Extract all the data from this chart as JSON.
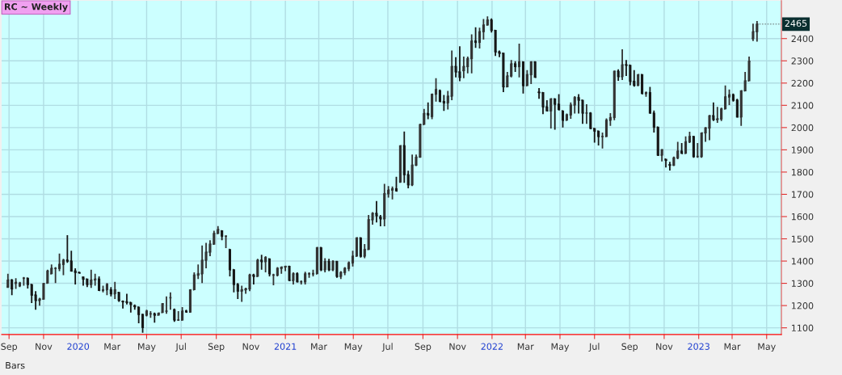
{
  "chart_data": {
    "type": "candlestick",
    "title": "RC ~ Weekly",
    "x": [
      "2019-08-30",
      "2019-09-06",
      "2019-09-13",
      "2019-09-20",
      "2019-09-27",
      "2019-10-04",
      "2019-10-11",
      "2019-10-18",
      "2019-10-25",
      "2019-11-01",
      "2019-11-08",
      "2019-11-15",
      "2019-11-22",
      "2019-11-29",
      "2019-12-06",
      "2019-12-13",
      "2019-12-20",
      "2019-12-27",
      "2020-01-03",
      "2020-01-10",
      "2020-01-17",
      "2020-01-24",
      "2020-01-31",
      "2020-02-07",
      "2020-02-14",
      "2020-02-21",
      "2020-02-28",
      "2020-03-06",
      "2020-03-13",
      "2020-03-20",
      "2020-03-27",
      "2020-04-03",
      "2020-04-10",
      "2020-04-17",
      "2020-04-24",
      "2020-05-01",
      "2020-05-08",
      "2020-05-15",
      "2020-05-22",
      "2020-05-29",
      "2020-06-05",
      "2020-06-12",
      "2020-06-19",
      "2020-06-26",
      "2020-07-03",
      "2020-07-10",
      "2020-07-17",
      "2020-07-24",
      "2020-07-31",
      "2020-08-07",
      "2020-08-14",
      "2020-08-21",
      "2020-08-28",
      "2020-09-04",
      "2020-09-11",
      "2020-09-18",
      "2020-09-25",
      "2020-10-02",
      "2020-10-09",
      "2020-10-16",
      "2020-10-23",
      "2020-10-30",
      "2020-11-06",
      "2020-11-13",
      "2020-11-20",
      "2020-11-27",
      "2020-12-04",
      "2020-12-11",
      "2020-12-18",
      "2020-12-25",
      "2021-01-01",
      "2021-01-08",
      "2021-01-15",
      "2021-01-22",
      "2021-01-29",
      "2021-02-05",
      "2021-02-12",
      "2021-02-19",
      "2021-02-26",
      "2021-03-05",
      "2021-03-12",
      "2021-03-19",
      "2021-03-26",
      "2021-04-02",
      "2021-04-09",
      "2021-04-16",
      "2021-04-23",
      "2021-04-30",
      "2021-05-07",
      "2021-05-14",
      "2021-05-21",
      "2021-05-28",
      "2021-06-04",
      "2021-06-11",
      "2021-06-18",
      "2021-06-25",
      "2021-07-02",
      "2021-07-09",
      "2021-07-16",
      "2021-07-23",
      "2021-07-30",
      "2021-08-06",
      "2021-08-13",
      "2021-08-20",
      "2021-08-27",
      "2021-09-03",
      "2021-09-10",
      "2021-09-17",
      "2021-09-24",
      "2021-10-01",
      "2021-10-08",
      "2021-10-15",
      "2021-10-22",
      "2021-10-29",
      "2021-11-05",
      "2021-11-12",
      "2021-11-19",
      "2021-11-26",
      "2021-12-03",
      "2021-12-10",
      "2021-12-17",
      "2021-12-24",
      "2021-12-31",
      "2022-01-07",
      "2022-01-14",
      "2022-01-21",
      "2022-01-28",
      "2022-02-04",
      "2022-02-11",
      "2022-02-18",
      "2022-02-25",
      "2022-03-04",
      "2022-03-11",
      "2022-03-18",
      "2022-03-25",
      "2022-04-01",
      "2022-04-08",
      "2022-04-15",
      "2022-04-22",
      "2022-04-29",
      "2022-05-06",
      "2022-05-13",
      "2022-05-20",
      "2022-05-27",
      "2022-06-03",
      "2022-06-10",
      "2022-06-17",
      "2022-06-24",
      "2022-07-01",
      "2022-07-08",
      "2022-07-15",
      "2022-07-22",
      "2022-07-29",
      "2022-08-05",
      "2022-08-12",
      "2022-08-19",
      "2022-08-26",
      "2022-09-02",
      "2022-09-09",
      "2022-09-16",
      "2022-09-23",
      "2022-09-30",
      "2022-10-07",
      "2022-10-14",
      "2022-10-21",
      "2022-10-28",
      "2022-11-04",
      "2022-11-11",
      "2022-11-18",
      "2022-11-25",
      "2022-12-02",
      "2022-12-09",
      "2022-12-16",
      "2022-12-23",
      "2022-12-30",
      "2023-01-06",
      "2023-01-13",
      "2023-01-20",
      "2023-01-27",
      "2023-02-03",
      "2023-02-10",
      "2023-02-17",
      "2023-02-24",
      "2023-03-03",
      "2023-03-10",
      "2023-03-17",
      "2023-03-24",
      "2023-03-31",
      "2023-04-07",
      "2023-04-14"
    ],
    "ohlc": [
      [
        1283,
        1343,
        1279,
        1315
      ],
      [
        1315,
        1319,
        1247,
        1275
      ],
      [
        1300,
        1323,
        1275,
        1304
      ],
      [
        1289,
        1307,
        1283,
        1301
      ],
      [
        1323,
        1328,
        1289,
        1323
      ],
      [
        1323,
        1325,
        1277,
        1295
      ],
      [
        1295,
        1295,
        1211,
        1247
      ],
      [
        1247,
        1265,
        1181,
        1223
      ],
      [
        1223,
        1235,
        1199,
        1229
      ],
      [
        1229,
        1301,
        1229,
        1299
      ],
      [
        1301,
        1361,
        1301,
        1355
      ],
      [
        1343,
        1385,
        1343,
        1367
      ],
      [
        1367,
        1373,
        1301,
        1367
      ],
      [
        1367,
        1434,
        1355,
        1385
      ],
      [
        1385,
        1410,
        1337,
        1404
      ],
      [
        1404,
        1516,
        1392,
        1400
      ],
      [
        1400,
        1446,
        1355,
        1355
      ],
      [
        1355,
        1367,
        1295,
        1349
      ],
      [
        1349,
        1352,
        1346,
        1346
      ],
      [
        1328,
        1331,
        1289,
        1319
      ],
      [
        1319,
        1319,
        1283,
        1295
      ],
      [
        1295,
        1361,
        1279,
        1315
      ],
      [
        1315,
        1343,
        1289,
        1319
      ],
      [
        1319,
        1331,
        1267,
        1268
      ],
      [
        1268,
        1289,
        1259,
        1271
      ],
      [
        1271,
        1301,
        1247,
        1295
      ],
      [
        1271,
        1283,
        1241,
        1253
      ],
      [
        1253,
        1307,
        1229,
        1271
      ],
      [
        1259,
        1259,
        1217,
        1223
      ],
      [
        1219,
        1223,
        1187,
        1217
      ],
      [
        1217,
        1253,
        1205,
        1214
      ],
      [
        1214,
        1214,
        1169,
        1205
      ],
      [
        1199,
        1205,
        1181,
        1195
      ],
      [
        1193,
        1193,
        1120,
        1160
      ],
      [
        1160,
        1163,
        1078,
        1102
      ],
      [
        1157,
        1181,
        1151,
        1175
      ],
      [
        1163,
        1175,
        1145,
        1163
      ],
      [
        1163,
        1169,
        1123,
        1157
      ],
      [
        1157,
        1169,
        1157,
        1166
      ],
      [
        1169,
        1211,
        1169,
        1208
      ],
      [
        1175,
        1241,
        1163,
        1175
      ],
      [
        1235,
        1259,
        1181,
        1235
      ],
      [
        1181,
        1187,
        1127,
        1135
      ],
      [
        1135,
        1175,
        1133,
        1135
      ],
      [
        1135,
        1193,
        1133,
        1175
      ],
      [
        1175,
        1181,
        1169,
        1171
      ],
      [
        1171,
        1271,
        1169,
        1271
      ],
      [
        1271,
        1349,
        1271,
        1337
      ],
      [
        1337,
        1385,
        1319,
        1343
      ],
      [
        1343,
        1470,
        1301,
        1404
      ],
      [
        1404,
        1482,
        1367,
        1440
      ],
      [
        1440,
        1494,
        1422,
        1476
      ],
      [
        1476,
        1536,
        1476,
        1524
      ],
      [
        1524,
        1557,
        1524,
        1542
      ],
      [
        1536,
        1536,
        1494,
        1512
      ],
      [
        1512,
        1512,
        1458,
        1512
      ],
      [
        1452,
        1452,
        1331,
        1361
      ],
      [
        1361,
        1361,
        1259,
        1295
      ],
      [
        1295,
        1301,
        1229,
        1265
      ],
      [
        1265,
        1289,
        1217,
        1271
      ],
      [
        1271,
        1280,
        1253,
        1275
      ],
      [
        1275,
        1343,
        1265,
        1337
      ],
      [
        1337,
        1343,
        1295,
        1331
      ],
      [
        1331,
        1410,
        1331,
        1404
      ],
      [
        1404,
        1428,
        1361,
        1398
      ],
      [
        1398,
        1422,
        1349,
        1416
      ],
      [
        1410,
        1410,
        1331,
        1343
      ],
      [
        1337,
        1343,
        1291,
        1337
      ],
      [
        1337,
        1373,
        1331,
        1367
      ],
      [
        1367,
        1376,
        1343,
        1373
      ],
      [
        1373,
        1379,
        1355,
        1376
      ],
      [
        1376,
        1379,
        1310,
        1313
      ],
      [
        1313,
        1349,
        1295,
        1343
      ],
      [
        1343,
        1349,
        1304,
        1307
      ],
      [
        1307,
        1313,
        1295,
        1307
      ],
      [
        1307,
        1352,
        1295,
        1343
      ],
      [
        1343,
        1349,
        1325,
        1343
      ],
      [
        1343,
        1361,
        1331,
        1343
      ],
      [
        1343,
        1464,
        1343,
        1460
      ],
      [
        1460,
        1464,
        1355,
        1361
      ],
      [
        1361,
        1413,
        1349,
        1398
      ],
      [
        1398,
        1410,
        1355,
        1361
      ],
      [
        1361,
        1404,
        1355,
        1398
      ],
      [
        1398,
        1401,
        1325,
        1331
      ],
      [
        1331,
        1355,
        1319,
        1349
      ],
      [
        1349,
        1373,
        1337,
        1367
      ],
      [
        1367,
        1398,
        1355,
        1392
      ],
      [
        1392,
        1446,
        1376,
        1422
      ],
      [
        1422,
        1506,
        1422,
        1504
      ],
      [
        1504,
        1504,
        1416,
        1422
      ],
      [
        1422,
        1476,
        1413,
        1452
      ],
      [
        1452,
        1607,
        1452,
        1586
      ],
      [
        1586,
        1620,
        1564,
        1614
      ],
      [
        1614,
        1670,
        1574,
        1604
      ],
      [
        1598,
        1607,
        1556,
        1590
      ],
      [
        1590,
        1747,
        1556,
        1703
      ],
      [
        1703,
        1737,
        1685,
        1719
      ],
      [
        1719,
        1735,
        1677,
        1725
      ],
      [
        1725,
        1779,
        1713,
        1715
      ],
      [
        1755,
        1920,
        1752,
        1918
      ],
      [
        1918,
        1982,
        1752,
        1788
      ],
      [
        1788,
        1806,
        1727,
        1743
      ],
      [
        1743,
        1879,
        1737,
        1831
      ],
      [
        1831,
        1879,
        1827,
        1867
      ],
      [
        1867,
        2017,
        1864,
        2014
      ],
      [
        2014,
        2084,
        2014,
        2063
      ],
      [
        2063,
        2113,
        2038,
        2057
      ],
      [
        2050,
        2153,
        2038,
        2150
      ],
      [
        2150,
        2222,
        2117,
        2171
      ],
      [
        2165,
        2171,
        2117,
        2117
      ],
      [
        2117,
        2147,
        2075,
        2111
      ],
      [
        2111,
        2165,
        2081,
        2141
      ],
      [
        2141,
        2346,
        2123,
        2274
      ],
      [
        2274,
        2316,
        2226,
        2250
      ],
      [
        2250,
        2365,
        2208,
        2226
      ],
      [
        2256,
        2319,
        2222,
        2274
      ],
      [
        2274,
        2319,
        2244,
        2310
      ],
      [
        2310,
        2419,
        2244,
        2389
      ],
      [
        2389,
        2451,
        2358,
        2383
      ],
      [
        2383,
        2449,
        2355,
        2431
      ],
      [
        2431,
        2488,
        2395,
        2461
      ],
      [
        2461,
        2500,
        2459,
        2483
      ],
      [
        2483,
        2491,
        2427,
        2437
      ],
      [
        2437,
        2437,
        2322,
        2340
      ],
      [
        2340,
        2346,
        2316,
        2334
      ],
      [
        2334,
        2334,
        2159,
        2183
      ],
      [
        2183,
        2250,
        2183,
        2232
      ],
      [
        2232,
        2304,
        2226,
        2286
      ],
      [
        2286,
        2298,
        2250,
        2274
      ],
      [
        2274,
        2377,
        2226,
        2295
      ],
      [
        2295,
        2295,
        2153,
        2189
      ],
      [
        2189,
        2258,
        2189,
        2238
      ],
      [
        2238,
        2298,
        2196,
        2295
      ],
      [
        2295,
        2298,
        2226,
        2226
      ],
      [
        2159,
        2177,
        2129,
        2157
      ],
      [
        2157,
        2157,
        2060,
        2093
      ],
      [
        2093,
        2123,
        2075,
        2075
      ],
      [
        2075,
        2131,
        1996,
        2129
      ],
      [
        2129,
        2130,
        1990,
        2105
      ],
      [
        2105,
        2150,
        2077,
        2081
      ],
      [
        2075,
        2075,
        2000,
        2033
      ],
      [
        2033,
        2063,
        2033,
        2057
      ],
      [
        2057,
        2113,
        2039,
        2101
      ],
      [
        2101,
        2141,
        2063,
        2135
      ],
      [
        2135,
        2150,
        2063,
        2123
      ],
      [
        2123,
        2123,
        2017,
        2065
      ],
      [
        2065,
        2105,
        2017,
        2065
      ],
      [
        2065,
        2069,
        1993,
        1996
      ],
      [
        1996,
        1996,
        1932,
        1984
      ],
      [
        1984,
        1984,
        1920,
        1960
      ],
      [
        1960,
        1978,
        1906,
        1960
      ],
      [
        1960,
        2041,
        1960,
        2033
      ],
      [
        2033,
        2065,
        2008,
        2045
      ],
      [
        2045,
        2256,
        2033,
        2253
      ],
      [
        2253,
        2262,
        2210,
        2229
      ],
      [
        2229,
        2352,
        2214,
        2282
      ],
      [
        2282,
        2304,
        2232,
        2280
      ],
      [
        2280,
        2280,
        2190,
        2208
      ],
      [
        2208,
        2258,
        2184,
        2190
      ],
      [
        2190,
        2238,
        2186,
        2238
      ],
      [
        2238,
        2238,
        2150,
        2153
      ],
      [
        2153,
        2162,
        2138,
        2157
      ],
      [
        2157,
        2183,
        2063,
        2065
      ],
      [
        2065,
        2077,
        1978,
        2002
      ],
      [
        2002,
        2002,
        1872,
        1876
      ],
      [
        1876,
        1903,
        1848,
        1900
      ],
      [
        1858,
        1858,
        1821,
        1853
      ],
      [
        1833,
        1846,
        1807,
        1831
      ],
      [
        1831,
        1870,
        1827,
        1864
      ],
      [
        1864,
        1936,
        1858,
        1894
      ],
      [
        1894,
        1930,
        1882,
        1884
      ],
      [
        1884,
        1960,
        1884,
        1936
      ],
      [
        1936,
        1981,
        1930,
        1960
      ],
      [
        1960,
        1960,
        1864,
        1870
      ],
      [
        1870,
        1930,
        1864,
        1870
      ],
      [
        1870,
        1978,
        1864,
        1976
      ],
      [
        1976,
        2002,
        1936,
        1998
      ],
      [
        1998,
        2057,
        1943,
        2053
      ],
      [
        2053,
        2113,
        2029,
        2036
      ],
      [
        2036,
        2093,
        2021,
        2039
      ],
      [
        2039,
        2089,
        2029,
        2084
      ],
      [
        2084,
        2189,
        2084,
        2138
      ],
      [
        2138,
        2171,
        2101,
        2147
      ],
      [
        2147,
        2153,
        2117,
        2123
      ],
      [
        2123,
        2129,
        2045,
        2048
      ],
      [
        2048,
        2165,
        2008,
        2165
      ],
      [
        2165,
        2250,
        2165,
        2210
      ],
      [
        2210,
        2319,
        2210,
        2298
      ],
      [
        2400,
        2467,
        2389,
        2431
      ],
      [
        2431,
        2479,
        2386,
        2465
      ]
    ],
    "colors": [
      "#333333",
      "#171717",
      "#333333",
      "#333333",
      "#333333",
      "#171717",
      "#171717",
      "#171717",
      "#333333",
      "#333333",
      "#333333",
      "#333333",
      "#333333",
      "#333333",
      "#333333",
      "#171717",
      "#171717",
      "#171717",
      "#171717",
      "#171717",
      "#171717",
      "#333333",
      "#333333",
      "#171717",
      "#333333",
      "#333333",
      "#171717",
      "#333333",
      "#171717",
      "#171717",
      "#171717",
      "#171717",
      "#171717",
      "#171717",
      "#171717",
      "#333333",
      "#333333",
      "#171717",
      "#333333",
      "#333333",
      "#333333",
      "#333333",
      "#171717",
      "#333333",
      "#333333",
      "#171717",
      "#333333",
      "#333333",
      "#333333",
      "#333333",
      "#333333",
      "#333333",
      "#333333",
      "#333333",
      "#171717",
      "#333333",
      "#171717",
      "#171717",
      "#171717",
      "#333333",
      "#333333",
      "#333333",
      "#171717",
      "#333333",
      "#171717",
      "#333333",
      "#171717",
      "#333333",
      "#333333",
      "#333333",
      "#333333",
      "#171717",
      "#333333",
      "#171717",
      "#333333",
      "#333333",
      "#333333",
      "#333333",
      "#333333",
      "#171717",
      "#333333",
      "#171717",
      "#333333",
      "#171717",
      "#333333",
      "#333333",
      "#333333",
      "#333333",
      "#333333",
      "#171717",
      "#333333",
      "#333333",
      "#333333",
      "#171717",
      "#171717",
      "#333333",
      "#333333",
      "#333333",
      "#171717",
      "#333333",
      "#171717",
      "#171717",
      "#333333",
      "#333333",
      "#333333",
      "#333333",
      "#171717",
      "#333333",
      "#333333",
      "#171717",
      "#171717",
      "#333333",
      "#333333",
      "#171717",
      "#171717",
      "#333333",
      "#333333",
      "#333333",
      "#171717",
      "#333333",
      "#333333",
      "#333333",
      "#171717",
      "#171717",
      "#171717",
      "#171717",
      "#333333",
      "#333333",
      "#171717",
      "#333333",
      "#171717",
      "#333333",
      "#333333",
      "#171717",
      "#171717",
      "#171717",
      "#171717",
      "#333333",
      "#171717",
      "#171717",
      "#171717",
      "#333333",
      "#333333",
      "#333333",
      "#171717",
      "#171717",
      "#333333",
      "#171717",
      "#171717",
      "#171717",
      "#333333",
      "#333333",
      "#333333",
      "#333333",
      "#171717",
      "#333333",
      "#171717",
      "#171717",
      "#171717",
      "#333333",
      "#171717",
      "#333333",
      "#171717",
      "#171717",
      "#171717",
      "#333333",
      "#171717",
      "#171717",
      "#333333",
      "#333333",
      "#171717",
      "#333333",
      "#333333",
      "#171717",
      "#333333",
      "#333333",
      "#333333",
      "#333333",
      "#171717",
      "#333333",
      "#333333",
      "#333333",
      "#333333",
      "#171717",
      "#171717",
      "#333333",
      "#333333",
      "#333333",
      "#333333",
      "#333333"
    ],
    "xlim": [
      "2019-08-19",
      "2023-05-27"
    ],
    "xticks": [
      {
        "value": "2019-09-01",
        "label": "Sep"
      },
      {
        "value": "2019-11-01",
        "label": "Nov"
      },
      {
        "value": "2020-01-01",
        "label": "2020"
      },
      {
        "value": "2020-03-01",
        "label": "Mar"
      },
      {
        "value": "2020-05-01",
        "label": "May"
      },
      {
        "value": "2020-07-01",
        "label": "Jul"
      },
      {
        "value": "2020-09-01",
        "label": "Sep"
      },
      {
        "value": "2020-11-01",
        "label": "Nov"
      },
      {
        "value": "2021-01-01",
        "label": "2021"
      },
      {
        "value": "2021-03-01",
        "label": "Mar"
      },
      {
        "value": "2021-05-01",
        "label": "May"
      },
      {
        "value": "2021-07-01",
        "label": "Jul"
      },
      {
        "value": "2021-09-01",
        "label": "Sep"
      },
      {
        "value": "2021-11-01",
        "label": "Nov"
      },
      {
        "value": "2022-01-01",
        "label": "2022"
      },
      {
        "value": "2022-03-01",
        "label": "Mar"
      },
      {
        "value": "2022-05-01",
        "label": "May"
      },
      {
        "value": "2022-07-01",
        "label": "Jul"
      },
      {
        "value": "2022-09-01",
        "label": "Sep"
      },
      {
        "value": "2022-11-01",
        "label": "Nov"
      },
      {
        "value": "2023-01-01",
        "label": "2023"
      },
      {
        "value": "2023-03-01",
        "label": "Mar"
      },
      {
        "value": "2023-05-01",
        "label": "May"
      }
    ],
    "ylim": [
      1070,
      2570
    ],
    "yticks": [
      1100,
      1200,
      1300,
      1400,
      1500,
      1600,
      1700,
      1800,
      1900,
      2000,
      2100,
      2200,
      2300,
      2400
    ],
    "grid": true,
    "annotations": [
      {
        "text": "2465",
        "x": "2023-04-14",
        "y": 2465
      },
      "Bars"
    ]
  }
}
